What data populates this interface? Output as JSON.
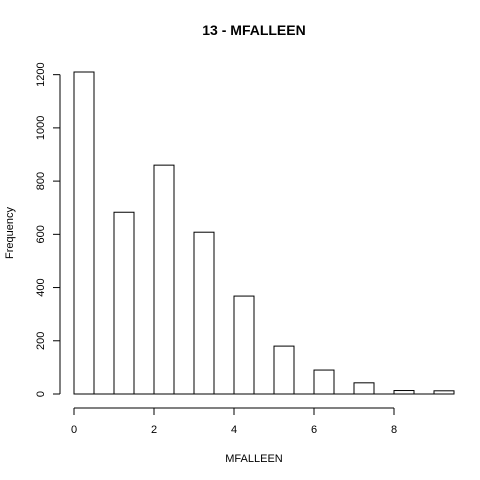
{
  "chart_data": {
    "type": "bar",
    "title": "13 - MFALLEEN",
    "xlabel": "MFALLEEN",
    "ylabel": "Frequency",
    "categories": [
      "0",
      "1",
      "2",
      "3",
      "4",
      "5",
      "6",
      "7",
      "8",
      "9"
    ],
    "values": [
      1210,
      683,
      860,
      608,
      368,
      180,
      90,
      42,
      13,
      12
    ],
    "bars": [
      {
        "x": 0,
        "value": 1210
      },
      {
        "x": 1,
        "value": 683
      },
      {
        "x": 2,
        "value": 860
      },
      {
        "x": 3,
        "value": 608
      },
      {
        "x": 4,
        "value": 368
      },
      {
        "x": 5,
        "value": 180
      },
      {
        "x": 6,
        "value": 90
      },
      {
        "x": 7,
        "value": 42
      },
      {
        "x": 8,
        "value": 13
      },
      {
        "x": 9,
        "value": 12
      }
    ],
    "bar_width": 0.5,
    "xlim": [
      0,
      9
    ],
    "ylim": [
      0,
      1210
    ],
    "x_ticks": [
      0,
      2,
      4,
      6,
      8
    ],
    "x_tick_labels": [
      "0",
      "2",
      "4",
      "6",
      "8"
    ],
    "y_ticks": [
      0,
      200,
      400,
      600,
      800,
      1000,
      1200
    ],
    "y_tick_labels": [
      "0",
      "200",
      "400",
      "600",
      "800",
      "1000",
      "1200"
    ],
    "grid": false,
    "legend": "none",
    "colors": {
      "bar_fill": "#ffffff",
      "bar_stroke": "#000000"
    }
  }
}
